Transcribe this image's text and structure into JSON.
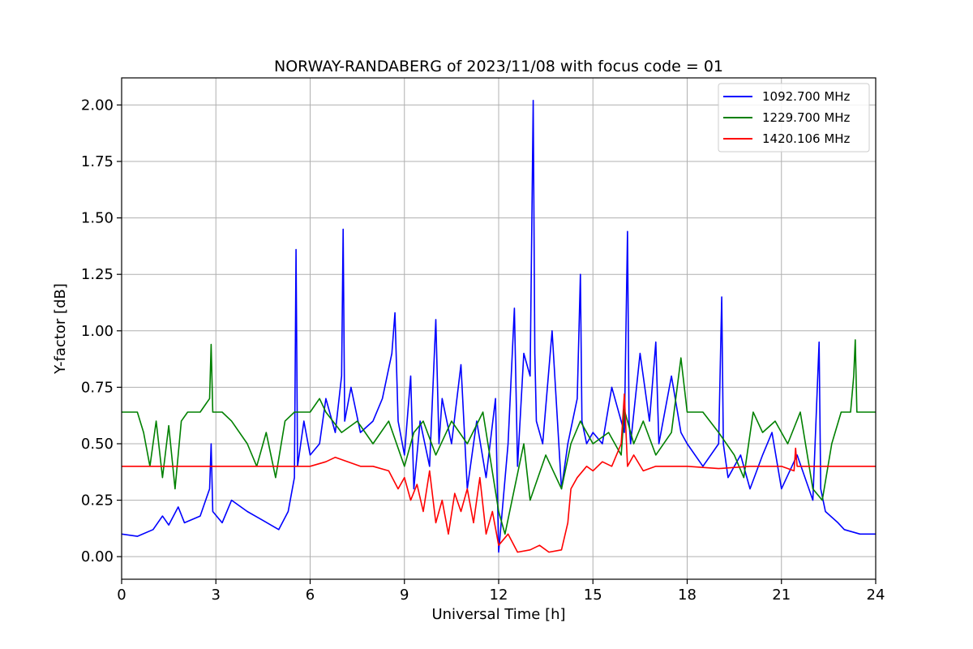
{
  "chart_data": {
    "type": "line",
    "title": "NORWAY-RANDABERG of 2023/11/08 with focus code = 01",
    "xlabel": "Universal Time [h]",
    "ylabel": "Y-factor [dB]",
    "xlim": [
      0,
      24
    ],
    "ylim": [
      -0.1,
      2.12
    ],
    "xticks": [
      0,
      3,
      6,
      9,
      12,
      15,
      18,
      21,
      24
    ],
    "xtick_labels": [
      "0",
      "3",
      "6",
      "9",
      "12",
      "15",
      "18",
      "21",
      "24"
    ],
    "yticks": [
      0.0,
      0.25,
      0.5,
      0.75,
      1.0,
      1.25,
      1.5,
      1.75,
      2.0
    ],
    "ytick_labels": [
      "0.00",
      "0.25",
      "0.50",
      "0.75",
      "1.00",
      "1.25",
      "1.50",
      "1.75",
      "2.00"
    ],
    "grid": true,
    "legend_position": "top-right",
    "series": [
      {
        "name": "1092.700 MHz",
        "color": "#0000ff",
        "x": [
          0,
          0.5,
          1,
          1.3,
          1.5,
          1.8,
          2,
          2.5,
          2.8,
          2.85,
          2.9,
          3.2,
          3.5,
          4,
          4.5,
          5,
          5.3,
          5.5,
          5.55,
          5.6,
          5.8,
          6,
          6.3,
          6.5,
          6.8,
          7,
          7.05,
          7.1,
          7.3,
          7.6,
          8,
          8.3,
          8.6,
          8.7,
          8.8,
          9,
          9.2,
          9.3,
          9.5,
          9.8,
          10,
          10.1,
          10.2,
          10.5,
          10.8,
          11,
          11.3,
          11.6,
          11.9,
          12,
          12.3,
          12.5,
          12.6,
          12.8,
          13,
          13.1,
          13.15,
          13.2,
          13.4,
          13.7,
          14,
          14.2,
          14.5,
          14.6,
          14.65,
          14.8,
          15,
          15.3,
          15.6,
          16,
          16.1,
          16.15,
          16.2,
          16.5,
          16.8,
          17,
          17.1,
          17.5,
          17.8,
          18,
          18.5,
          19,
          19.1,
          19.15,
          19.3,
          19.7,
          20,
          20.4,
          20.7,
          21,
          21.5,
          22,
          22.2,
          22.25,
          22.4,
          22.8,
          23,
          23.5,
          24
        ],
        "y": [
          0.1,
          0.09,
          0.12,
          0.18,
          0.14,
          0.22,
          0.15,
          0.18,
          0.3,
          0.5,
          0.2,
          0.15,
          0.25,
          0.2,
          0.16,
          0.12,
          0.2,
          0.35,
          1.36,
          0.4,
          0.6,
          0.45,
          0.5,
          0.7,
          0.55,
          0.8,
          1.45,
          0.6,
          0.75,
          0.55,
          0.6,
          0.7,
          0.9,
          1.08,
          0.6,
          0.45,
          0.8,
          0.3,
          0.6,
          0.4,
          1.05,
          0.5,
          0.7,
          0.5,
          0.85,
          0.3,
          0.6,
          0.35,
          0.7,
          0.02,
          0.5,
          1.1,
          0.4,
          0.9,
          0.8,
          2.02,
          0.9,
          0.6,
          0.5,
          1.0,
          0.3,
          0.5,
          0.7,
          1.25,
          0.6,
          0.5,
          0.55,
          0.5,
          0.75,
          0.55,
          1.44,
          0.6,
          0.5,
          0.9,
          0.6,
          0.95,
          0.5,
          0.8,
          0.55,
          0.5,
          0.4,
          0.5,
          1.15,
          0.5,
          0.35,
          0.45,
          0.3,
          0.45,
          0.55,
          0.3,
          0.45,
          0.25,
          0.95,
          0.3,
          0.2,
          0.15,
          0.12,
          0.1,
          0.1
        ]
      },
      {
        "name": "1229.700 MHz",
        "color": "#008000",
        "x": [
          0,
          0.5,
          0.7,
          0.9,
          1.1,
          1.3,
          1.5,
          1.7,
          1.9,
          2.1,
          2.5,
          2.8,
          2.85,
          2.9,
          3.2,
          3.5,
          4,
          4.3,
          4.6,
          4.9,
          5.2,
          5.5,
          6,
          6.3,
          6.5,
          7,
          7.5,
          8,
          8.5,
          9,
          9.3,
          9.6,
          10,
          10.5,
          11,
          11.5,
          12,
          12.2,
          12.5,
          12.8,
          13,
          13.5,
          14,
          14.3,
          14.6,
          15,
          15.5,
          15.9,
          16,
          16.3,
          16.6,
          17,
          17.5,
          17.8,
          18,
          18.5,
          19,
          19.5,
          19.8,
          20.1,
          20.4,
          20.8,
          21.2,
          21.6,
          22,
          22.3,
          22.6,
          22.9,
          23.2,
          23.3,
          23.35,
          23.4,
          23.8,
          24
        ],
        "y": [
          0.64,
          0.64,
          0.55,
          0.4,
          0.6,
          0.35,
          0.58,
          0.3,
          0.6,
          0.64,
          0.64,
          0.7,
          0.94,
          0.64,
          0.64,
          0.6,
          0.5,
          0.4,
          0.55,
          0.35,
          0.6,
          0.64,
          0.64,
          0.7,
          0.64,
          0.55,
          0.6,
          0.5,
          0.6,
          0.4,
          0.55,
          0.6,
          0.45,
          0.6,
          0.5,
          0.64,
          0.2,
          0.1,
          0.3,
          0.5,
          0.25,
          0.45,
          0.3,
          0.5,
          0.6,
          0.5,
          0.55,
          0.45,
          0.65,
          0.5,
          0.6,
          0.45,
          0.55,
          0.88,
          0.64,
          0.64,
          0.55,
          0.45,
          0.35,
          0.64,
          0.55,
          0.6,
          0.5,
          0.64,
          0.3,
          0.25,
          0.5,
          0.64,
          0.64,
          0.8,
          0.96,
          0.64,
          0.64,
          0.64
        ]
      },
      {
        "name": "1420.106 MHz",
        "color": "#ff0000",
        "x": [
          0,
          1,
          2,
          3,
          4,
          5,
          6,
          6.5,
          6.8,
          7.2,
          7.6,
          8,
          8.5,
          8.8,
          9.0,
          9.2,
          9.4,
          9.6,
          9.8,
          10,
          10.2,
          10.4,
          10.6,
          10.8,
          11,
          11.2,
          11.4,
          11.6,
          11.8,
          12,
          12.3,
          12.6,
          13,
          13.3,
          13.6,
          14,
          14.2,
          14.3,
          14.5,
          14.8,
          15,
          15.3,
          15.6,
          15.9,
          16.0,
          16.1,
          16.3,
          16.6,
          17,
          18,
          19,
          20,
          21,
          21.4,
          21.45,
          21.5,
          22,
          23,
          24
        ],
        "y": [
          0.4,
          0.4,
          0.4,
          0.4,
          0.4,
          0.4,
          0.4,
          0.42,
          0.44,
          0.42,
          0.4,
          0.4,
          0.38,
          0.3,
          0.35,
          0.25,
          0.32,
          0.2,
          0.38,
          0.15,
          0.25,
          0.1,
          0.28,
          0.2,
          0.3,
          0.15,
          0.35,
          0.1,
          0.2,
          0.05,
          0.1,
          0.02,
          0.03,
          0.05,
          0.02,
          0.03,
          0.15,
          0.3,
          0.35,
          0.4,
          0.38,
          0.42,
          0.4,
          0.5,
          0.72,
          0.4,
          0.45,
          0.38,
          0.4,
          0.4,
          0.39,
          0.4,
          0.4,
          0.38,
          0.48,
          0.4,
          0.4,
          0.4,
          0.4
        ]
      }
    ]
  }
}
